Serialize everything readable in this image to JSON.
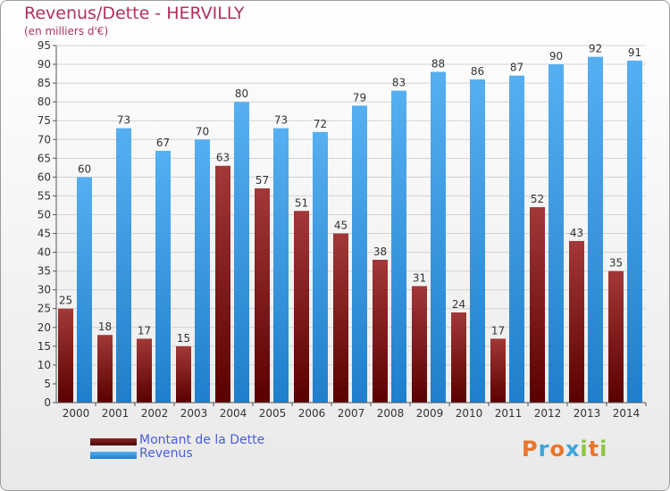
{
  "header": {
    "title": "Revenus/Dette - HERVILLY",
    "subtitle": "(en milliers d'€)"
  },
  "legend": {
    "items": [
      {
        "label": "Montant de la Dette",
        "color": "#7a1e1e"
      },
      {
        "label": "Revenus",
        "color": "#3f9ee6"
      }
    ]
  },
  "logo": {
    "text": "Proxiti",
    "letters": [
      {
        "ch": "P",
        "color": "#e8762b"
      },
      {
        "ch": "r",
        "color": "#3aa5d8"
      },
      {
        "ch": "o",
        "color": "#e8762b"
      },
      {
        "ch": "x",
        "color": "#3aa5d8"
      },
      {
        "ch": "i",
        "color": "#8cc63f"
      },
      {
        "ch": "t",
        "color": "#e8762b"
      },
      {
        "ch": "i",
        "color": "#8cc63f"
      }
    ]
  },
  "chart_data": {
    "type": "bar",
    "categories": [
      "2000",
      "2001",
      "2002",
      "2003",
      "2004",
      "2005",
      "2006",
      "2007",
      "2008",
      "2009",
      "2010",
      "2011",
      "2012",
      "2013",
      "2014"
    ],
    "series": [
      {
        "name": "Montant de la Dette",
        "values": [
          25,
          18,
          17,
          15,
          63,
          57,
          51,
          45,
          38,
          31,
          24,
          17,
          52,
          43,
          35
        ],
        "color": "#7a1e1e"
      },
      {
        "name": "Revenus",
        "values": [
          60,
          73,
          67,
          70,
          80,
          73,
          72,
          79,
          83,
          88,
          86,
          87,
          90,
          92,
          91
        ],
        "color": "#3f9ee6"
      }
    ],
    "ylim": [
      0,
      95
    ],
    "yticks": [
      0,
      5,
      10,
      15,
      20,
      25,
      30,
      35,
      40,
      45,
      50,
      55,
      60,
      65,
      70,
      75,
      80,
      85,
      90,
      95
    ],
    "grid": true,
    "data_labels": true,
    "legend_position": "bottom-left"
  }
}
